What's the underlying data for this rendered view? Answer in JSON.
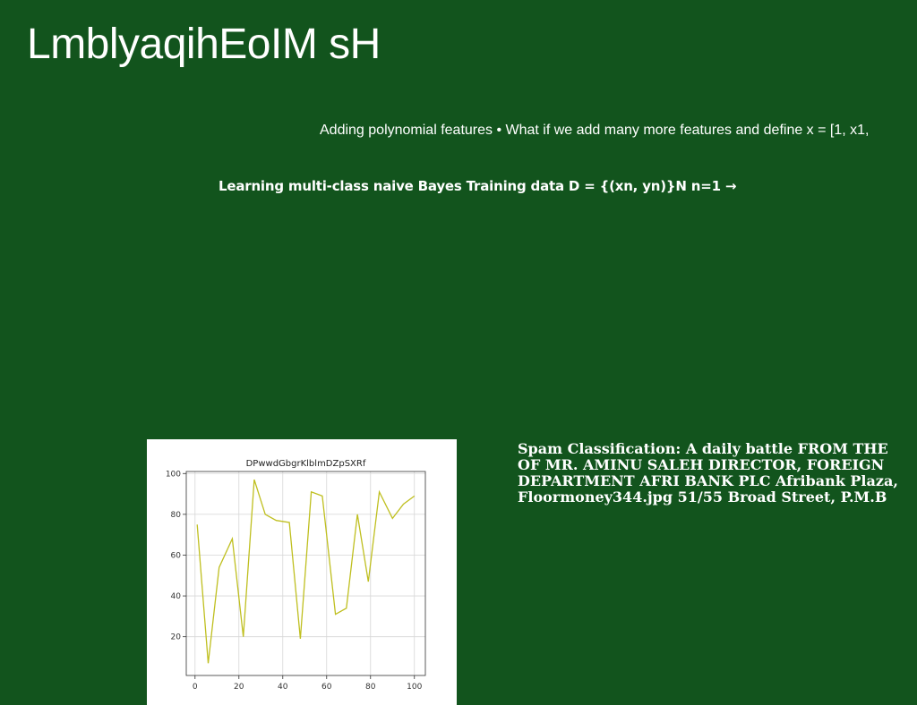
{
  "slide": {
    "title": "LmblyaqihEoIM sH",
    "text_line_1": "Adding polynomial features • What if we add many more features and define x = [1, x1,",
    "text_line_2": "Learning multi-class naive Bayes Training data D = {(xn, yn)}N n=1 →",
    "spam_text": "Spam Classification: A daily battle FROM THE OF MR. AMINU SALEH DIRECTOR, FOREIGN DEPARTMENT AFRI BANK PLC Afribank Plaza, Floormoney344.jpg 51/55 Broad Street, P.M.B"
  },
  "colors": {
    "background": "#12541d",
    "line": "#bfbf1f"
  },
  "chart_data": {
    "type": "line",
    "title": "DPwwdGbgrKlblmDZpSXRf",
    "xlabel": "",
    "ylabel": "",
    "xlim": [
      -4,
      105
    ],
    "ylim": [
      1,
      101
    ],
    "xticks": [
      0,
      20,
      40,
      60,
      80,
      100
    ],
    "yticks": [
      20,
      40,
      60,
      80,
      100
    ],
    "grid": true,
    "x": [
      1,
      6,
      11,
      17,
      22,
      27,
      32,
      37,
      43,
      48,
      53,
      58,
      64,
      69,
      74,
      79,
      84,
      90,
      95,
      100
    ],
    "y": [
      75,
      7,
      54,
      68,
      20,
      97,
      80,
      77,
      76,
      19,
      91,
      89,
      31,
      34,
      80,
      47,
      91,
      78,
      85,
      89
    ]
  }
}
